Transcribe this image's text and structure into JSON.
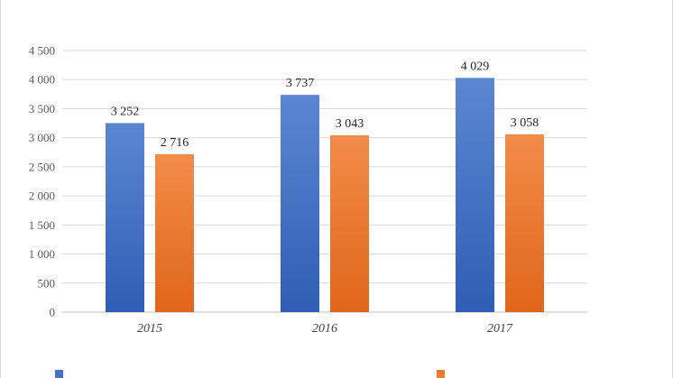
{
  "chart_data": {
    "type": "bar",
    "title": "",
    "xlabel": "",
    "ylabel": "",
    "categories": [
      "2015",
      "2016",
      "2017"
    ],
    "series": [
      {
        "name": "",
        "color": "#4472C4",
        "values": [
          3252,
          3737,
          4029
        ],
        "data_labels": [
          "3 252",
          "3 737",
          "4 029"
        ]
      },
      {
        "name": "",
        "color": "#ED7D31",
        "values": [
          2716,
          3043,
          3058
        ],
        "data_labels": [
          "2 716",
          "3 043",
          "3 058"
        ]
      }
    ],
    "ylim": [
      0,
      4500
    ],
    "yticks": [
      0,
      500,
      1000,
      1500,
      2000,
      2500,
      3000,
      3500,
      4000,
      4500
    ],
    "ytick_labels": [
      "0",
      "500",
      "1 000",
      "1 500",
      "2 000",
      "2 500",
      "3 000",
      "3 500",
      "4 000",
      "4 500"
    ],
    "grid": true,
    "legend_position": "bottom",
    "legend_truncated": true
  }
}
